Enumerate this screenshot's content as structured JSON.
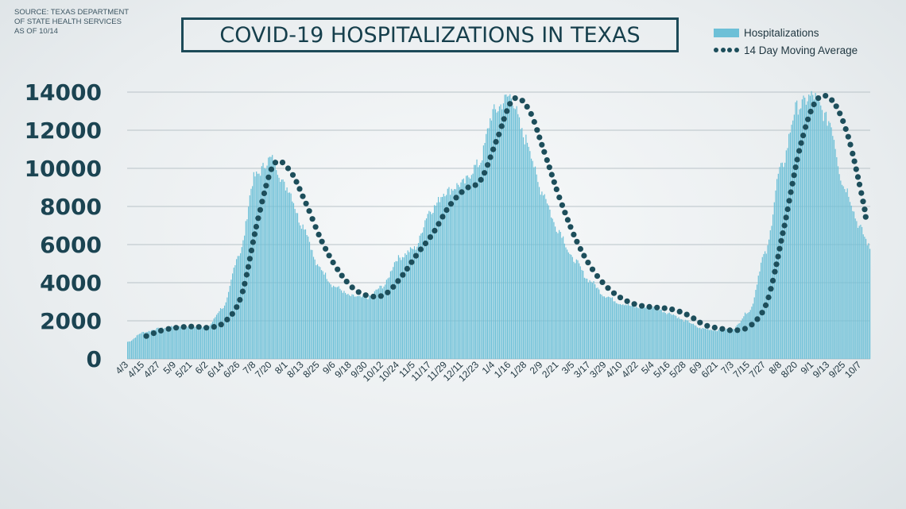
{
  "source_lines": [
    "SOURCE: TEXAS DEPARTMENT",
    "OF STATE HEALTH SERVICES",
    "AS OF 10/14"
  ],
  "chart_data": {
    "type": "bar",
    "title": "COVID-19 HOSPITALIZATIONS IN TEXAS",
    "xlabel": "",
    "ylabel": "",
    "ylim": [
      0,
      14000
    ],
    "yticks": [
      0,
      2000,
      4000,
      6000,
      8000,
      10000,
      12000,
      14000
    ],
    "xticks": [
      "4/3",
      "4/15",
      "4/27",
      "5/9",
      "5/21",
      "6/2",
      "6/14",
      "6/26",
      "7/8",
      "7/20",
      "8/1",
      "8/13",
      "8/25",
      "9/6",
      "9/18",
      "9/30",
      "10/12",
      "10/24",
      "11/5",
      "11/17",
      "11/29",
      "12/11",
      "12/23",
      "1/4",
      "1/16",
      "1/28",
      "2/9",
      "2/21",
      "3/5",
      "3/17",
      "3/29",
      "4/10",
      "4/22",
      "5/4",
      "5/16",
      "5/28",
      "6/9",
      "6/21",
      "7/3",
      "7/15",
      "7/27",
      "8/8",
      "8/20",
      "9/1",
      "9/13",
      "9/25",
      "10/7"
    ],
    "tick_spacing_days": 12,
    "grid": true,
    "legend_position": "top-right",
    "bar_color": "#6dc0d7",
    "line_color": "#1d4e5b",
    "legend": [
      "Hospitalizations",
      "14 Day Moving Average"
    ],
    "series": [
      {
        "name": "Hospitalizations",
        "type": "bar",
        "x_by_tick": [
          "4/3",
          "4/15",
          "4/27",
          "5/9",
          "5/21",
          "6/2",
          "6/14",
          "6/26",
          "7/8",
          "7/20",
          "8/1",
          "8/13",
          "8/25",
          "9/6",
          "9/18",
          "9/30",
          "10/12",
          "10/24",
          "11/5",
          "11/17",
          "11/29",
          "12/11",
          "12/23",
          "1/4",
          "1/16",
          "1/28",
          "2/9",
          "2/21",
          "3/5",
          "3/17",
          "3/29",
          "4/10",
          "4/22",
          "5/4",
          "5/16",
          "5/28",
          "6/9",
          "6/21",
          "7/3",
          "7/15",
          "7/27",
          "8/8",
          "8/20",
          "9/1",
          "9/13",
          "9/25",
          "10/7"
        ],
        "values_at_ticks": [
          900,
          1400,
          1600,
          1700,
          1650,
          1700,
          2700,
          5500,
          9600,
          10500,
          9000,
          7000,
          4800,
          3800,
          3300,
          3200,
          3800,
          5300,
          5800,
          7800,
          8800,
          9200,
          10200,
          13000,
          13800,
          11500,
          8800,
          6800,
          5200,
          4100,
          3300,
          2900,
          2700,
          2700,
          2400,
          2000,
          1600,
          1500,
          1600,
          2500,
          5500,
          10000,
          13200,
          13800,
          12500,
          9000,
          6900
        ],
        "last_value": 5600
      },
      {
        "name": "14 Day Moving Average",
        "type": "dotted-line",
        "values_at_ticks": [
          null,
          1200,
          1500,
          1650,
          1700,
          1650,
          2000,
          3400,
          7300,
          10200,
          9900,
          8200,
          6200,
          4700,
          3700,
          3300,
          3400,
          4300,
          5500,
          6600,
          8000,
          8900,
          9400,
          11500,
          13600,
          13100,
          10800,
          8300,
          6200,
          4700,
          3700,
          3100,
          2800,
          2700,
          2600,
          2300,
          1800,
          1600,
          1500,
          1800,
          3100,
          6800,
          11000,
          13500,
          13600,
          11800,
          8200
        ]
      }
    ]
  }
}
